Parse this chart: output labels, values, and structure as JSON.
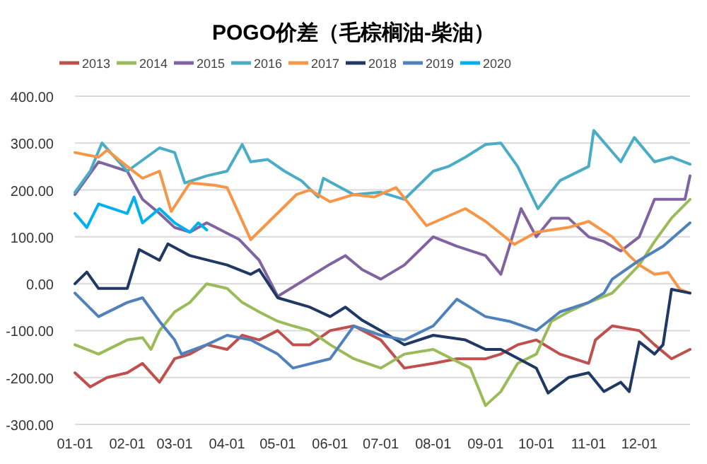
{
  "chart_data": {
    "type": "line",
    "title": "POGO价差（毛棕榈油-柴油）",
    "legend": "top",
    "grid": "y",
    "marker": "none",
    "line_style": "solid",
    "xlim": [
      "--01-01",
      "--12-31"
    ],
    "xticks": [
      {
        "value": "--01-01",
        "label": "01-01"
      },
      {
        "value": "--02-01",
        "label": "02-01"
      },
      {
        "value": "--03-01",
        "label": "03-01"
      },
      {
        "value": "--04-01",
        "label": "04-01"
      },
      {
        "value": "--05-01",
        "label": "05-01"
      },
      {
        "value": "--06-01",
        "label": "06-01"
      },
      {
        "value": "--07-01",
        "label": "07-01"
      },
      {
        "value": "--08-01",
        "label": "08-01"
      },
      {
        "value": "--09-01",
        "label": "09-01"
      },
      {
        "value": "--10-01",
        "label": "10-01"
      },
      {
        "value": "--11-01",
        "label": "11-01"
      },
      {
        "value": "--12-01",
        "label": "12-01"
      }
    ],
    "ylim": [
      -300,
      400
    ],
    "yticks": [
      {
        "value": 400,
        "label": "400.00"
      },
      {
        "value": 300,
        "label": "300.00"
      },
      {
        "value": 200,
        "label": "200.00"
      },
      {
        "value": 100,
        "label": "100.00"
      },
      {
        "value": 0,
        "label": "0.00"
      },
      {
        "value": -100,
        "label": "-100.00"
      },
      {
        "value": -200,
        "label": "-200.00"
      },
      {
        "value": -300,
        "label": "-300.00"
      }
    ],
    "series": [
      {
        "name": "2013",
        "color": "#c0504d",
        "x": [
          "--01-01",
          "--01-10",
          "--01-20",
          "--02-01",
          "--02-10",
          "--02-20",
          "--03-01",
          "--03-10",
          "--03-20",
          "--04-01",
          "--04-10",
          "--04-20",
          "--05-01",
          "--05-10",
          "--05-20",
          "--06-01",
          "--06-15",
          "--07-01",
          "--07-15",
          "--08-01",
          "--08-15",
          "--09-01",
          "--09-10",
          "--09-20",
          "--10-01",
          "--10-15",
          "--11-01",
          "--11-05",
          "--11-15",
          "--12-01",
          "--12-10",
          "--12-20",
          "--12-31"
        ],
        "values": [
          -190,
          -220,
          -200,
          -190,
          -170,
          -210,
          -160,
          -150,
          -130,
          -140,
          -110,
          -120,
          -100,
          -130,
          -130,
          -100,
          -90,
          -120,
          -180,
          -170,
          -160,
          -160,
          -150,
          -130,
          -120,
          -150,
          -170,
          -120,
          -90,
          -100,
          -130,
          -160,
          -140
        ]
      },
      {
        "name": "2014",
        "color": "#9bbb59",
        "x": [
          "--01-01",
          "--01-15",
          "--02-01",
          "--02-10",
          "--02-15",
          "--02-20",
          "--03-01",
          "--03-10",
          "--03-20",
          "--04-01",
          "--04-10",
          "--04-20",
          "--05-01",
          "--05-10",
          "--05-20",
          "--06-01",
          "--06-15",
          "--07-01",
          "--07-15",
          "--08-01",
          "--08-23",
          "--09-01",
          "--09-10",
          "--09-20",
          "--10-01",
          "--10-10",
          "--10-20",
          "--11-01",
          "--11-15",
          "--12-01",
          "--12-10",
          "--12-20",
          "--12-31"
        ],
        "values": [
          -130,
          -150,
          -120,
          -115,
          -140,
          -100,
          -60,
          -40,
          0,
          -10,
          -40,
          -60,
          -80,
          -90,
          -100,
          -130,
          -160,
          -180,
          -150,
          -140,
          -180,
          -260,
          -230,
          -170,
          -150,
          -80,
          -60,
          -40,
          -20,
          40,
          90,
          140,
          180
        ]
      },
      {
        "name": "2015",
        "color": "#8064a2",
        "x": [
          "--01-01",
          "--01-15",
          "--02-01",
          "--02-10",
          "--02-20",
          "--03-01",
          "--03-10",
          "--03-20",
          "--04-08",
          "--04-20",
          "--05-01",
          "--06-01",
          "--06-10",
          "--06-20",
          "--07-01",
          "--07-15",
          "--08-01",
          "--08-15",
          "--09-01",
          "--09-10",
          "--09-22",
          "--10-01",
          "--10-10",
          "--10-20",
          "--11-01",
          "--11-10",
          "--11-20",
          "--12-01",
          "--12-10",
          "--12-20",
          "--12-28",
          "--12-31"
        ],
        "values": [
          190,
          260,
          240,
          180,
          150,
          120,
          110,
          130,
          95,
          50,
          -27,
          42,
          60,
          30,
          10,
          40,
          100,
          80,
          60,
          20,
          160,
          100,
          140,
          140,
          100,
          90,
          70,
          100,
          180,
          180,
          180,
          230
        ]
      },
      {
        "name": "2016",
        "color": "#4bacc6",
        "x": [
          "--01-01",
          "--01-10",
          "--01-17",
          "--02-01",
          "--02-20",
          "--03-01",
          "--03-07",
          "--03-20",
          "--04-01",
          "--04-10",
          "--04-15",
          "--04-25",
          "--05-05",
          "--05-15",
          "--05-25",
          "--05-28",
          "--06-15",
          "--07-01",
          "--07-15",
          "--08-01",
          "--08-10",
          "--08-20",
          "--09-01",
          "--09-10",
          "--09-20",
          "--10-02",
          "--10-15",
          "--11-01",
          "--11-04",
          "--11-20",
          "--11-28",
          "--12-10",
          "--12-20",
          "--12-31"
        ],
        "values": [
          195,
          240,
          300,
          240,
          290,
          280,
          215,
          230,
          240,
          297,
          260,
          265,
          240,
          220,
          185,
          225,
          190,
          195,
          180,
          240,
          250,
          270,
          297,
          300,
          250,
          160,
          220,
          250,
          327,
          260,
          312,
          260,
          270,
          255
        ]
      },
      {
        "name": "2017",
        "color": "#f79646",
        "x": [
          "--01-01",
          "--01-15",
          "--01-20",
          "--02-01",
          "--02-10",
          "--02-20",
          "--02-27",
          "--03-10",
          "--03-25",
          "--04-01",
          "--04-15",
          "--05-12",
          "--05-20",
          "--06-01",
          "--06-15",
          "--06-27",
          "--07-10",
          "--07-28",
          "--08-20",
          "--09-01",
          "--09-18",
          "--10-01",
          "--10-20",
          "--11-01",
          "--11-15",
          "--11-25",
          "--12-01",
          "--12-10",
          "--12-18",
          "--12-25",
          "--12-31"
        ],
        "values": [
          280,
          270,
          285,
          250,
          225,
          240,
          154,
          215,
          210,
          205,
          94,
          190,
          200,
          175,
          190,
          185,
          205,
          124,
          160,
          133,
          84,
          110,
          120,
          133,
          100,
          60,
          40,
          20,
          24,
          -12,
          -20
        ]
      },
      {
        "name": "2018",
        "color": "#1f3864",
        "x": [
          "--01-01",
          "--01-08",
          "--01-15",
          "--02-01",
          "--02-08",
          "--02-20",
          "--02-25",
          "--03-10",
          "--04-01",
          "--04-15",
          "--04-20",
          "--05-01",
          "--05-20",
          "--06-01",
          "--06-10",
          "--06-20",
          "--07-01",
          "--07-15",
          "--08-01",
          "--08-20",
          "--09-01",
          "--09-10",
          "--10-01",
          "--10-08",
          "--10-20",
          "--11-01",
          "--11-10",
          "--11-20",
          "--11-25",
          "--12-01",
          "--12-10",
          "--12-15",
          "--12-20",
          "--12-31"
        ],
        "values": [
          0,
          25,
          -10,
          -10,
          73,
          50,
          85,
          60,
          40,
          20,
          30,
          -30,
          -50,
          -70,
          -50,
          -78,
          -100,
          -130,
          -110,
          -120,
          -140,
          -140,
          -180,
          -233,
          -200,
          -190,
          -230,
          -210,
          -230,
          -124,
          -150,
          -130,
          -12,
          -20
        ]
      },
      {
        "name": "2019",
        "color": "#4f81bd",
        "x": [
          "--01-01",
          "--01-15",
          "--02-01",
          "--02-10",
          "--02-20",
          "--03-01",
          "--03-05",
          "--03-20",
          "--04-01",
          "--04-15",
          "--05-01",
          "--05-10",
          "--06-01",
          "--06-15",
          "--07-01",
          "--07-15",
          "--08-01",
          "--08-15",
          "--09-01",
          "--09-15",
          "--10-01",
          "--10-15",
          "--11-01",
          "--11-10",
          "--11-15",
          "--12-01",
          "--12-15",
          "--12-31"
        ],
        "values": [
          -20,
          -70,
          -40,
          -30,
          -80,
          -120,
          -150,
          -130,
          -110,
          -120,
          -150,
          -180,
          -160,
          -90,
          -110,
          -120,
          -90,
          -33,
          -70,
          -80,
          -100,
          -60,
          -40,
          -20,
          10,
          50,
          80,
          130
        ]
      },
      {
        "name": "2020",
        "color": "#00b0f0",
        "x": [
          "--01-01",
          "--01-08",
          "--01-15",
          "--02-01",
          "--02-05",
          "--02-10",
          "--02-20",
          "--03-01",
          "--03-10",
          "--03-15",
          "--03-20"
        ],
        "values": [
          150,
          120,
          170,
          150,
          185,
          130,
          160,
          130,
          110,
          130,
          115
        ]
      }
    ]
  }
}
